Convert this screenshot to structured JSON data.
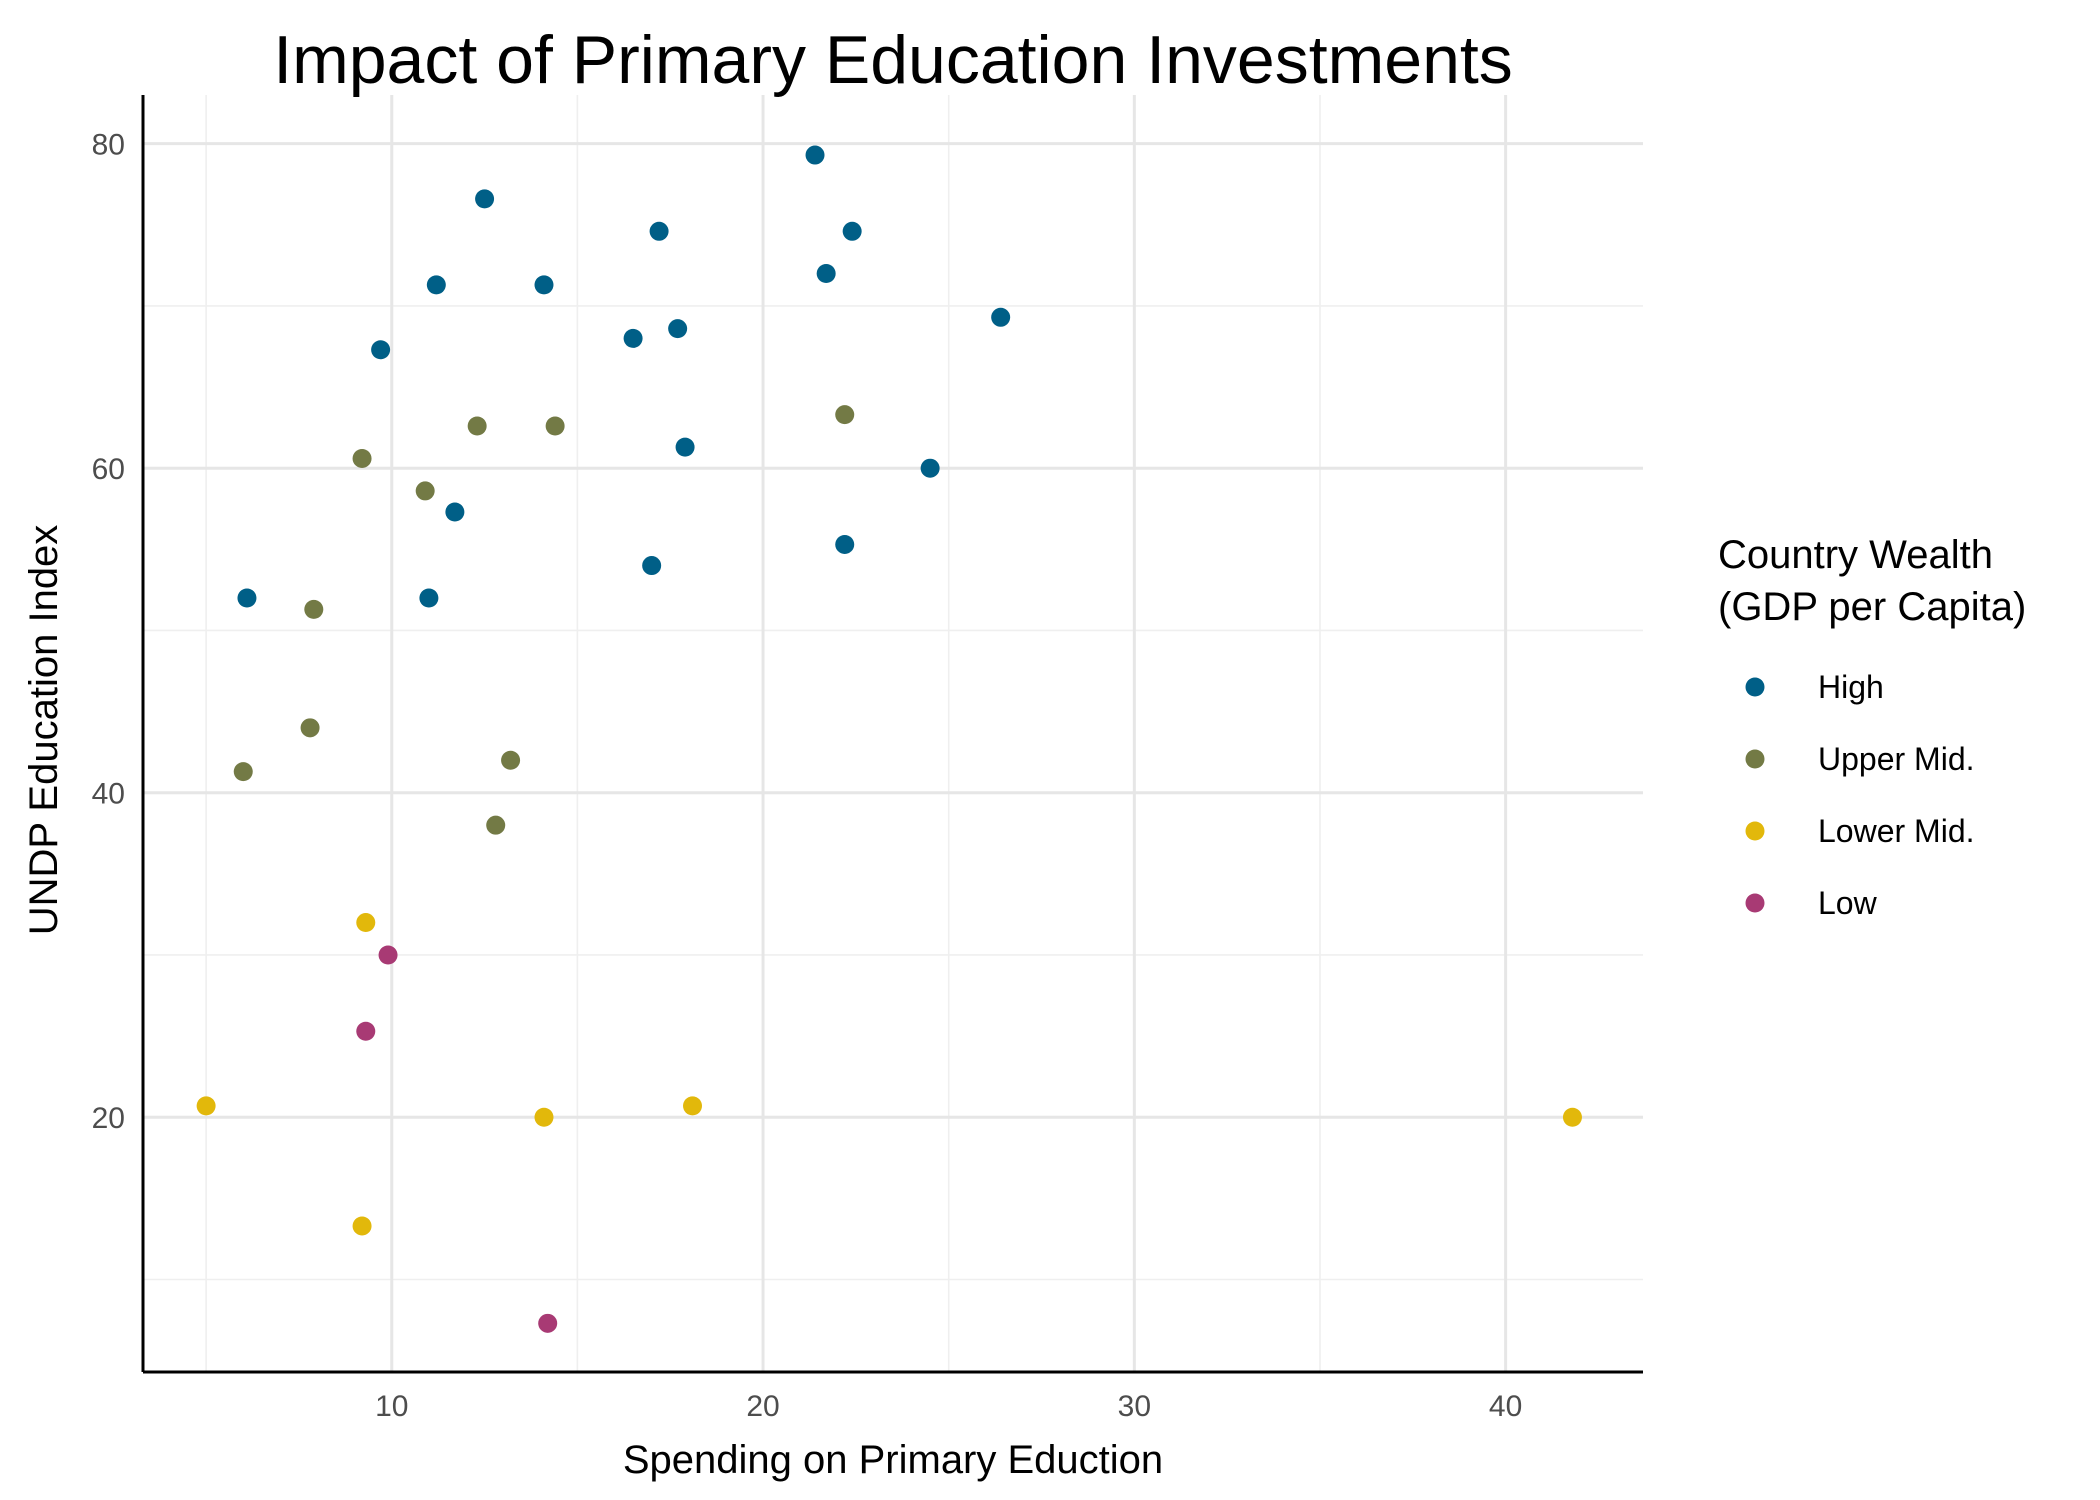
{
  "chart_data": {
    "type": "scatter",
    "title": "Impact of Primary Education Investments",
    "xlabel": "Spending on Primary Eduction",
    "ylabel": "UNDP Education Index",
    "xlim": [
      3.3,
      43.7
    ],
    "ylim": [
      4.3,
      83.0
    ],
    "x_ticks": [
      10,
      20,
      30,
      40
    ],
    "y_ticks": [
      20,
      40,
      60,
      80
    ],
    "x_minor": [
      5,
      15,
      25,
      35
    ],
    "y_minor": [
      10,
      30,
      50,
      70
    ],
    "grid": true,
    "legend": {
      "title_lines": [
        "Country Wealth",
        "(GDP per Capita)"
      ],
      "position": "right"
    },
    "series": [
      {
        "name": "High",
        "color": "#005f87",
        "points": [
          [
            21.4,
            79.3
          ],
          [
            12.5,
            76.6
          ],
          [
            17.2,
            74.6
          ],
          [
            22.4,
            74.6
          ],
          [
            11.2,
            71.3
          ],
          [
            14.1,
            71.3
          ],
          [
            21.7,
            72.0
          ],
          [
            26.4,
            69.3
          ],
          [
            16.5,
            68.0
          ],
          [
            17.7,
            68.6
          ],
          [
            9.7,
            67.3
          ],
          [
            17.9,
            61.3
          ],
          [
            24.5,
            60.0
          ],
          [
            11.7,
            57.3
          ],
          [
            22.2,
            55.3
          ],
          [
            17.0,
            54.0
          ],
          [
            6.1,
            52.0
          ],
          [
            11.0,
            52.0
          ]
        ]
      },
      {
        "name": "Upper Mid.",
        "color": "#737a45",
        "points": [
          [
            22.2,
            63.3
          ],
          [
            12.3,
            62.6
          ],
          [
            14.4,
            62.6
          ],
          [
            9.2,
            60.6
          ],
          [
            10.9,
            58.6
          ],
          [
            7.9,
            51.3
          ],
          [
            7.8,
            44.0
          ],
          [
            13.2,
            42.0
          ],
          [
            6.0,
            41.3
          ],
          [
            12.8,
            38.0
          ]
        ]
      },
      {
        "name": "Lower Mid.",
        "color": "#e2b80b",
        "points": [
          [
            9.3,
            32.0
          ],
          [
            5.0,
            20.7
          ],
          [
            14.1,
            20.0
          ],
          [
            18.1,
            20.7
          ],
          [
            41.8,
            20.0
          ],
          [
            9.2,
            13.3
          ]
        ]
      },
      {
        "name": "Low",
        "color": "#a83a74",
        "points": [
          [
            9.9,
            30.0
          ],
          [
            9.3,
            25.3
          ],
          [
            14.2,
            7.3
          ]
        ]
      }
    ]
  }
}
